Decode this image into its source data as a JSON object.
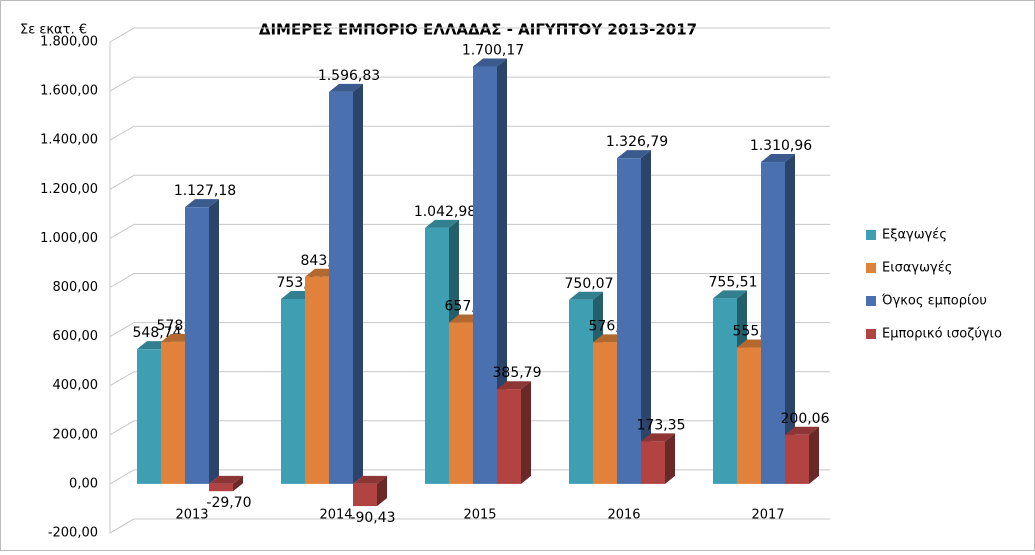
{
  "chart_data": {
    "type": "bar3d",
    "title": "ΔΙΜΕΡΕΣ ΕΜΠΟΡΙΟ ΕΛΛΑΔΑΣ - ΑΙΓΥΠΤΟΥ 2013-2017",
    "y_axis_label": "Σε εκατ. €",
    "categories": [
      "2013",
      "2014",
      "2015",
      "2016",
      "2017"
    ],
    "series": [
      {
        "name": "Εξαγωγές",
        "color": "#3e9fb3",
        "values": [
          548.74,
          753.2,
          1042.98,
          750.07,
          755.51
        ],
        "value_labels": [
          "548,74",
          "753,20",
          "1.042,98",
          "750,07",
          "755,51"
        ]
      },
      {
        "name": "Εισαγωγές",
        "color": "#e0823c",
        "values": [
          578.44,
          843.63,
          657.19,
          576.72,
          555.45
        ],
        "value_labels": [
          "578,44",
          "843,63",
          "657,19",
          "576,72",
          "555,45"
        ]
      },
      {
        "name": "Όγκος εμπορίου",
        "color": "#4a70b0",
        "values": [
          1127.18,
          1596.83,
          1700.17,
          1326.79,
          1310.96
        ],
        "value_labels": [
          "1.127,18",
          "1.596,83",
          "1.700,17",
          "1.326,79",
          "1.310,96"
        ]
      },
      {
        "name": "Εμπορικό ισοζύγιο",
        "color": "#b24343",
        "values": [
          -29.7,
          -90.43,
          385.79,
          173.35,
          200.06
        ],
        "value_labels": [
          "-29,70",
          "-90,43",
          "385,79",
          "173,35",
          "200,06"
        ]
      }
    ],
    "ylim": [
      -200,
      1800
    ],
    "yticks": [
      {
        "value": -200,
        "label": "-200,00"
      },
      {
        "value": 0,
        "label": "0,00"
      },
      {
        "value": 200,
        "label": "200,00"
      },
      {
        "value": 400,
        "label": "400,00"
      },
      {
        "value": 600,
        "label": "600,00"
      },
      {
        "value": 800,
        "label": "800,00"
      },
      {
        "value": 1000,
        "label": "1.000,00"
      },
      {
        "value": 1200,
        "label": "1.200,00"
      },
      {
        "value": 1400,
        "label": "1.400,00"
      },
      {
        "value": 1600,
        "label": "1.600,00"
      },
      {
        "value": 1800,
        "label": "1.800,00"
      }
    ],
    "grid": true,
    "legend": "right"
  }
}
